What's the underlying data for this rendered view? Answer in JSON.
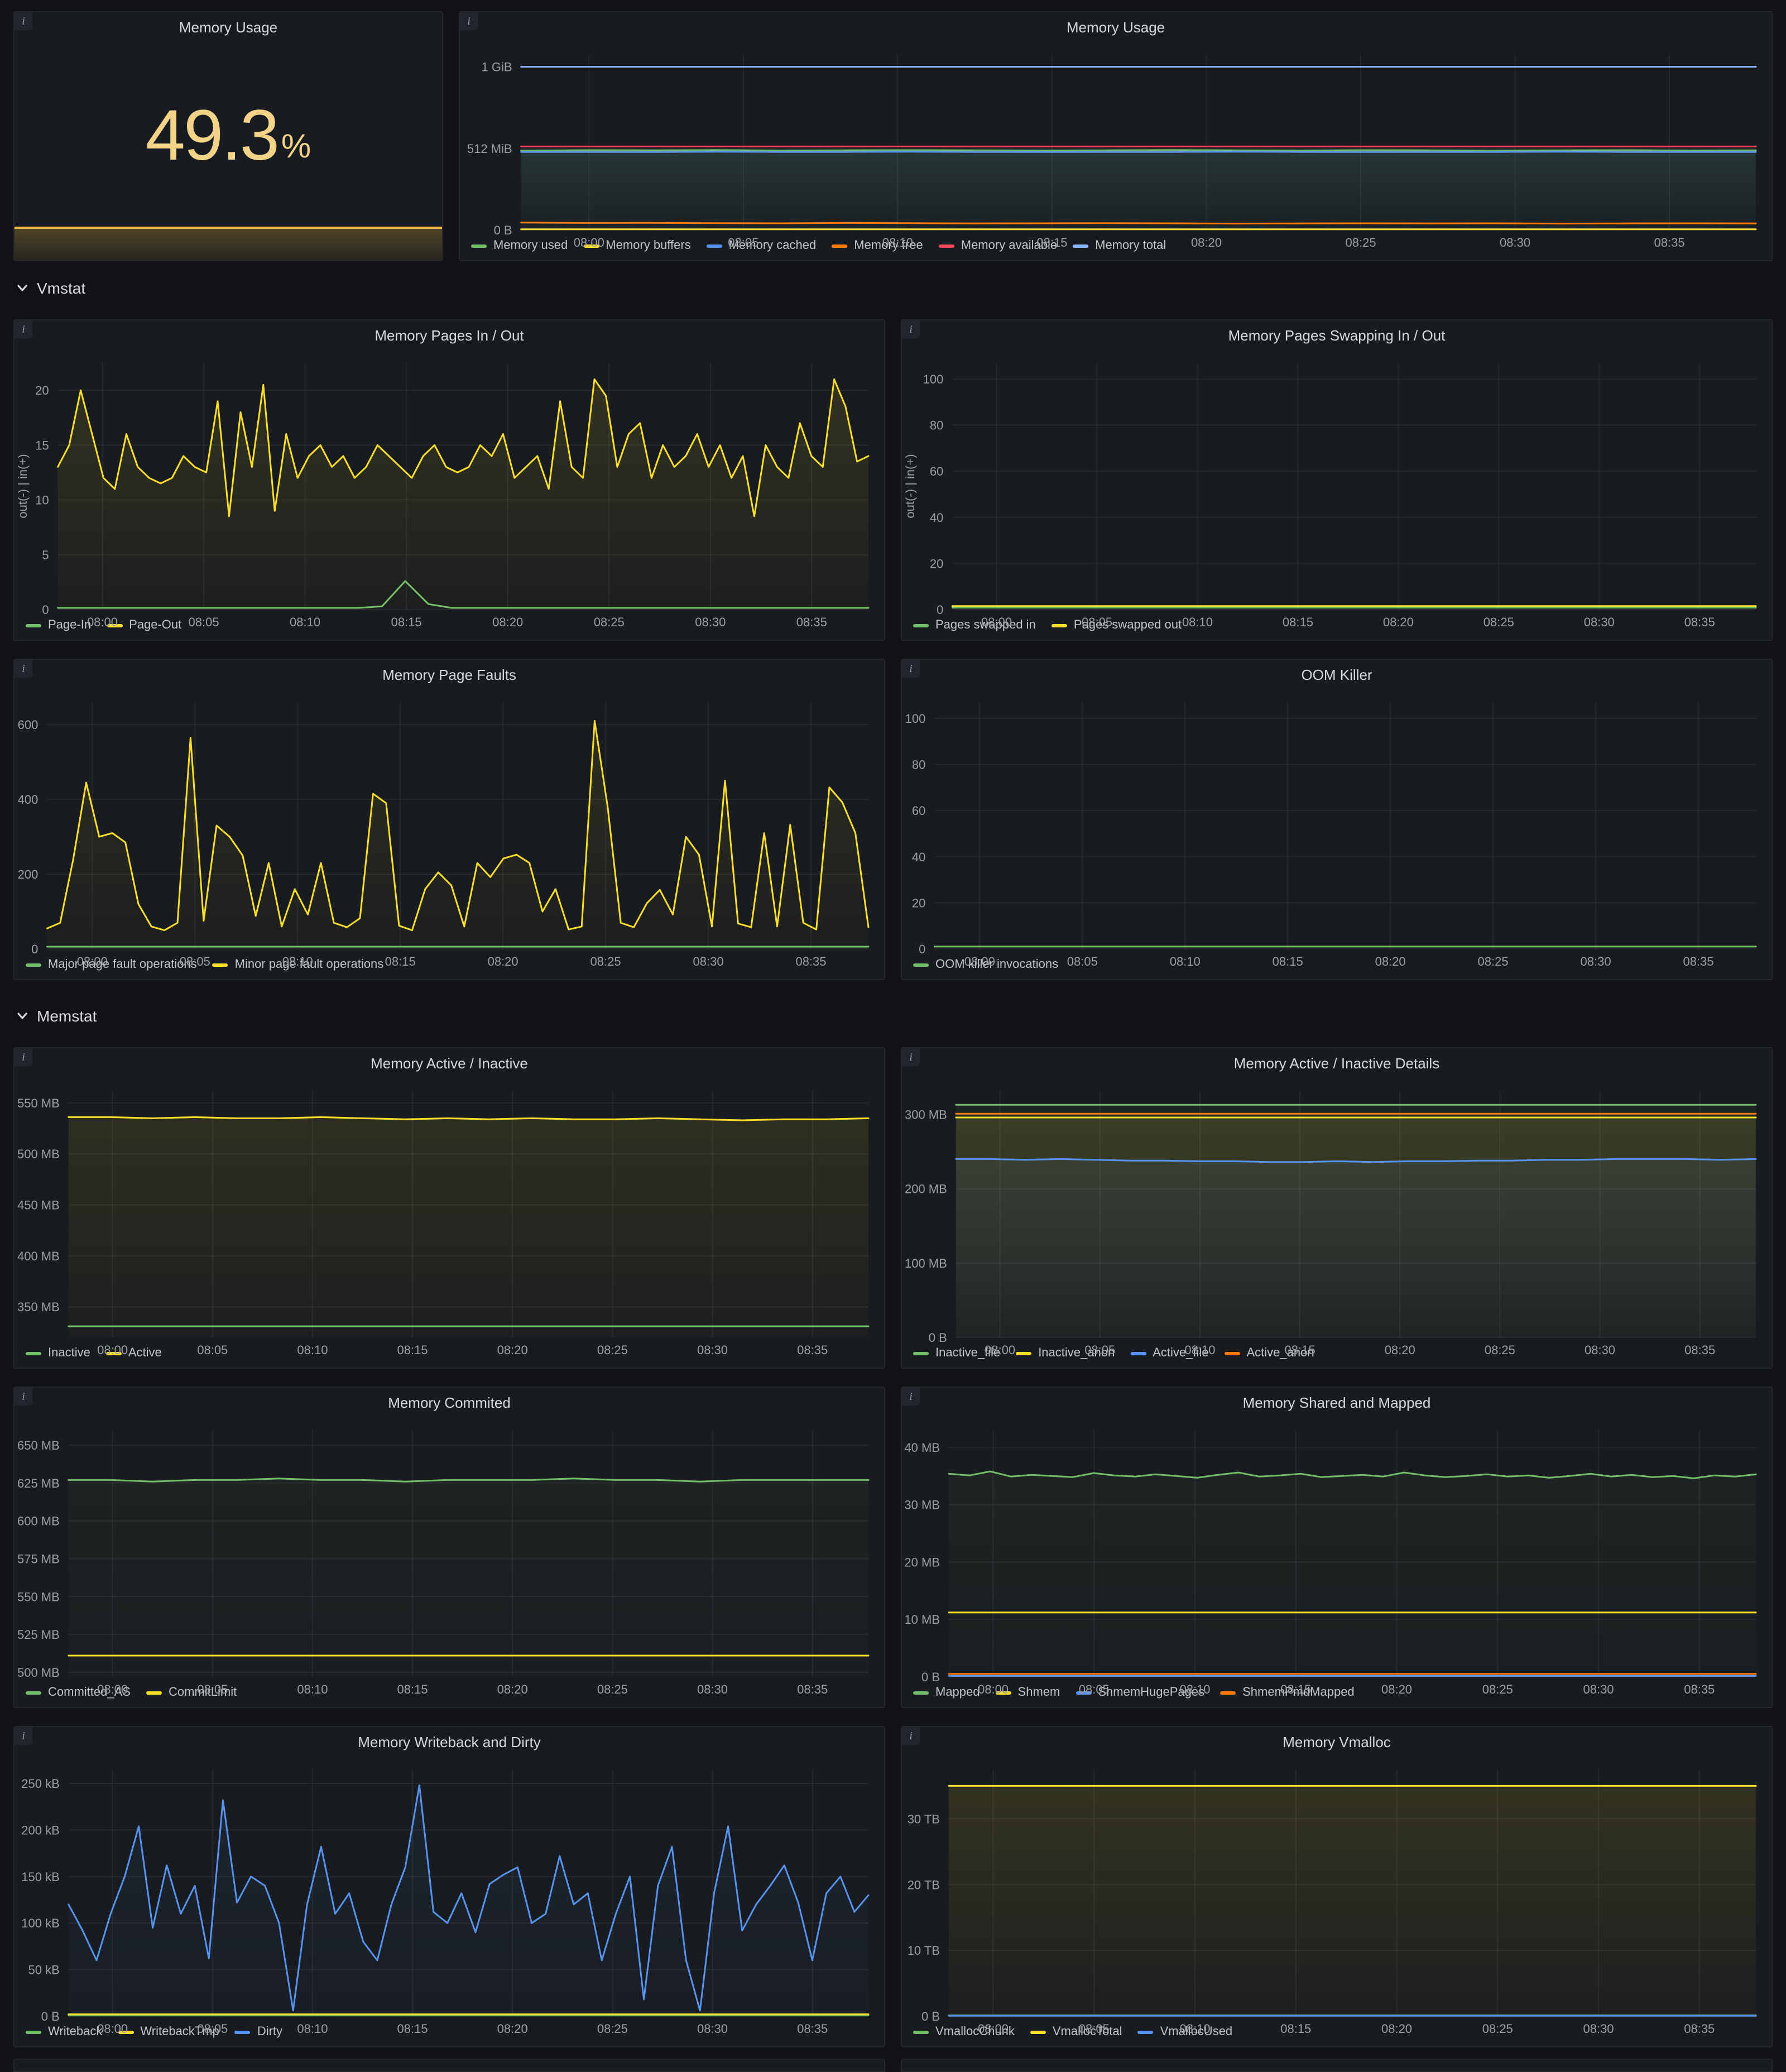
{
  "icons": {
    "info": "i",
    "chevron": "chevron-down"
  },
  "sections": {
    "vmstat": "Vmstat",
    "memstat": "Memstat"
  },
  "colors": {
    "green": "#73BF69",
    "yellow": "#FADE2A",
    "blue": "#5794F2",
    "orange": "#FF780A",
    "red": "#F2495C",
    "lightblue": "#8AB8FF",
    "panel_bg": "#181b1f",
    "page_bg": "#111217"
  },
  "gauge": {
    "title": "Memory Usage",
    "value": "49.3",
    "unit": "%",
    "color": "#F2D388",
    "bar_color": "#EAB839"
  },
  "time_ticks": [
    "08:00",
    "08:05",
    "08:10",
    "08:15",
    "08:20",
    "08:25",
    "08:30",
    "08:35"
  ],
  "chart_data": [
    {
      "type": "line",
      "title": "Memory Usage",
      "y_min": 0,
      "y_max": 1100,
      "y_ticks": [
        {
          "v": 0,
          "l": "0 B"
        },
        {
          "v": 512,
          "l": "512 MiB"
        },
        {
          "v": 1024,
          "l": "1 GiB"
        }
      ],
      "series": [
        {
          "name": "Memory used",
          "color": "#73BF69",
          "fill": 0.12,
          "points": [
            498,
            501,
            500,
            502,
            499,
            500,
            501,
            500,
            499,
            500,
            502,
            500,
            499,
            501,
            500,
            498,
            500,
            501,
            499,
            500
          ]
        },
        {
          "name": "Memory buffers",
          "color": "#FADE2A",
          "points": [
            4,
            4
          ]
        },
        {
          "name": "Memory cached",
          "color": "#5794F2",
          "fill": 0.06,
          "points": [
            490,
            490,
            489,
            491,
            490,
            490,
            491,
            490,
            489,
            490,
            490,
            491,
            490,
            489,
            490,
            490,
            491,
            490,
            490,
            490
          ]
        },
        {
          "name": "Memory free",
          "color": "#FF780A",
          "points": [
            46,
            44,
            45,
            43,
            42,
            44,
            43,
            41,
            42,
            43,
            42,
            40,
            41,
            42,
            41,
            42,
            40,
            41,
            42,
            41
          ]
        },
        {
          "name": "Memory available",
          "color": "#F2495C",
          "points": [
            524,
            524
          ]
        },
        {
          "name": "Memory total",
          "color": "#8AB8FF",
          "points": [
            1024,
            1024
          ]
        }
      ]
    },
    {
      "type": "line",
      "title": "Memory Pages In / Out",
      "y_label": "out(-) | in(+)",
      "y_min": 0,
      "y_max": 22.5,
      "y_ticks": [
        {
          "v": 0,
          "l": "0"
        },
        {
          "v": 5,
          "l": "5"
        },
        {
          "v": 10,
          "l": "10"
        },
        {
          "v": 15,
          "l": "15"
        },
        {
          "v": 20,
          "l": "20"
        }
      ],
      "series": [
        {
          "name": "Page-In",
          "color": "#73BF69",
          "points": [
            0.15,
            0.15,
            0.15,
            0.15,
            0.15,
            0.15,
            0.15,
            0.15,
            0.15,
            0.15,
            0.15,
            0.15,
            0.15,
            0.15,
            0.3,
            2.6,
            0.5,
            0.15,
            0.15,
            0.15,
            0.15,
            0.15,
            0.15,
            0.15,
            0.15,
            0.15,
            0.15,
            0.15,
            0.15,
            0.15,
            0.15,
            0.15,
            0.15,
            0.15,
            0.15,
            0.15
          ]
        },
        {
          "name": "Page-Out",
          "color": "#FADE2A",
          "fill": 0.12,
          "points": [
            13,
            15,
            20,
            16,
            12,
            11,
            16,
            13,
            12,
            11.5,
            12,
            14,
            13,
            12.5,
            19,
            8.5,
            18,
            13,
            20.5,
            9,
            16,
            12,
            14,
            15,
            13,
            14,
            12,
            13,
            15,
            14,
            13,
            12,
            14,
            15,
            13,
            12.5,
            13,
            15,
            14,
            16,
            12,
            13,
            14,
            11,
            19,
            13,
            12,
            21,
            19.5,
            13,
            16,
            17,
            12,
            15,
            13,
            14,
            16,
            13,
            15,
            12,
            14,
            8.5,
            15,
            13,
            12,
            17,
            14,
            13,
            21,
            18.5,
            13.5,
            14
          ]
        }
      ]
    },
    {
      "type": "line",
      "title": "Memory Pages Swapping In / Out",
      "y_label": "out(-) | in(+)",
      "y_min": 0,
      "y_max": 107,
      "y_ticks": [
        {
          "v": 0,
          "l": "0"
        },
        {
          "v": 20,
          "l": "20"
        },
        {
          "v": 40,
          "l": "40"
        },
        {
          "v": 60,
          "l": "60"
        },
        {
          "v": 80,
          "l": "80"
        },
        {
          "v": 100,
          "l": "100"
        }
      ],
      "series": [
        {
          "name": "Pages swapped in",
          "color": "#73BF69",
          "points": [
            0.8,
            0.8
          ]
        },
        {
          "name": "Pages swapped out",
          "color": "#FADE2A",
          "points": [
            1.5,
            1.5
          ]
        }
      ]
    },
    {
      "type": "line",
      "title": "Memory Page Faults",
      "y_min": 0,
      "y_max": 660,
      "y_ticks": [
        {
          "v": 0,
          "l": "0"
        },
        {
          "v": 200,
          "l": "200"
        },
        {
          "v": 400,
          "l": "400"
        },
        {
          "v": 600,
          "l": "600"
        }
      ],
      "series": [
        {
          "name": "Major page fault operations",
          "color": "#73BF69",
          "points": [
            6,
            6
          ]
        },
        {
          "name": "Minor page fault operations",
          "color": "#FADE2A",
          "fill": 0.1,
          "points": [
            55,
            70,
            240,
            445,
            300,
            310,
            285,
            120,
            60,
            50,
            70,
            565,
            75,
            330,
            300,
            250,
            88,
            230,
            60,
            160,
            92,
            230,
            70,
            58,
            82,
            415,
            390,
            62,
            50,
            160,
            205,
            170,
            60,
            230,
            192,
            242,
            252,
            230,
            100,
            160,
            52,
            60,
            610,
            380,
            70,
            58,
            122,
            158,
            92,
            300,
            252,
            60,
            450,
            68,
            58,
            310,
            60,
            332,
            70,
            52,
            432,
            392,
            310,
            58
          ]
        }
      ]
    },
    {
      "type": "line",
      "title": "OOM Killer",
      "y_min": 0,
      "y_max": 107,
      "y_ticks": [
        {
          "v": 0,
          "l": "0"
        },
        {
          "v": 20,
          "l": "20"
        },
        {
          "v": 40,
          "l": "40"
        },
        {
          "v": 60,
          "l": "60"
        },
        {
          "v": 80,
          "l": "80"
        },
        {
          "v": 100,
          "l": "100"
        }
      ],
      "series": [
        {
          "name": "OOM killer invocations",
          "color": "#73BF69",
          "points": [
            1,
            1
          ]
        }
      ]
    },
    {
      "type": "line",
      "title": "Memory Active / Inactive",
      "y_min": 320,
      "y_max": 562,
      "y_ticks": [
        {
          "v": 350,
          "l": "350 MB"
        },
        {
          "v": 400,
          "l": "400 MB"
        },
        {
          "v": 450,
          "l": "450 MB"
        },
        {
          "v": 500,
          "l": "500 MB"
        },
        {
          "v": 550,
          "l": "550 MB"
        }
      ],
      "series": [
        {
          "name": "Inactive",
          "color": "#73BF69",
          "points": [
            331,
            331
          ]
        },
        {
          "name": "Active",
          "color": "#FADE2A",
          "fill": 0.1,
          "points": [
            536,
            536,
            535,
            536,
            535,
            535,
            536,
            535,
            534,
            535,
            534,
            535,
            534,
            534,
            535,
            534,
            533,
            534,
            534,
            535
          ]
        }
      ]
    },
    {
      "type": "line",
      "title": "Memory Active / Inactive Details",
      "y_min": 0,
      "y_max": 332,
      "y_ticks": [
        {
          "v": 0,
          "l": "0 B"
        },
        {
          "v": 100,
          "l": "100 MB"
        },
        {
          "v": 200,
          "l": "200 MB"
        },
        {
          "v": 300,
          "l": "300 MB"
        }
      ],
      "series": [
        {
          "name": "Inactive_file",
          "color": "#73BF69",
          "fill": 0.07,
          "points": [
            313,
            313
          ]
        },
        {
          "name": "Inactive_anon",
          "color": "#FADE2A",
          "fill": 0.13,
          "points": [
            296,
            296
          ]
        },
        {
          "name": "Active_file",
          "color": "#5794F2",
          "fill": 0.08,
          "points": [
            240,
            240,
            239,
            240,
            239,
            238,
            238,
            237,
            237,
            236,
            236,
            237,
            236,
            237,
            237,
            238,
            238,
            239,
            239,
            240,
            240,
            240,
            239,
            240
          ]
        },
        {
          "name": "Active_anon",
          "color": "#FF780A",
          "points": [
            301,
            301
          ]
        }
      ]
    },
    {
      "type": "line",
      "title": "Memory Commited",
      "y_min": 497,
      "y_max": 660,
      "y_ticks": [
        {
          "v": 500,
          "l": "500 MB"
        },
        {
          "v": 525,
          "l": "525 MB"
        },
        {
          "v": 550,
          "l": "550 MB"
        },
        {
          "v": 575,
          "l": "575 MB"
        },
        {
          "v": 600,
          "l": "600 MB"
        },
        {
          "v": 625,
          "l": "625 MB"
        },
        {
          "v": 650,
          "l": "650 MB"
        }
      ],
      "series": [
        {
          "name": "Committed_AS",
          "color": "#73BF69",
          "fill": 0.05,
          "points": [
            627,
            627,
            626,
            627,
            627,
            628,
            627,
            627,
            626,
            627,
            627,
            627,
            628,
            627,
            627,
            626,
            627,
            627,
            627,
            627
          ]
        },
        {
          "name": "CommitLimit",
          "color": "#FADE2A",
          "points": [
            511,
            511
          ]
        }
      ]
    },
    {
      "type": "line",
      "title": "Memory Shared and Mapped",
      "y_min": 0,
      "y_max": 43,
      "y_ticks": [
        {
          "v": 0,
          "l": "0 B"
        },
        {
          "v": 10,
          "l": "10 MB"
        },
        {
          "v": 20,
          "l": "20 MB"
        },
        {
          "v": 30,
          "l": "30 MB"
        },
        {
          "v": 40,
          "l": "40 MB"
        }
      ],
      "series": [
        {
          "name": "Mapped",
          "color": "#73BF69",
          "fill": 0.06,
          "points": [
            35.4,
            35.1,
            35.8,
            34.9,
            35.2,
            35,
            34.8,
            35.5,
            35.1,
            34.9,
            35.3,
            35,
            34.7,
            35.2,
            35.6,
            34.9,
            35.1,
            35.4,
            34.8,
            35,
            35.2,
            34.9,
            35.6,
            35.1,
            34.8,
            35,
            35.3,
            34.9,
            35.1,
            34.7,
            35,
            35.4,
            34.9,
            35.2,
            34.8,
            35,
            34.6,
            35.1,
            34.9,
            35.3
          ]
        },
        {
          "name": "Shmem",
          "color": "#FADE2A",
          "points": [
            11.2,
            11.2
          ]
        },
        {
          "name": "ShmemHugePages",
          "color": "#5794F2",
          "points": [
            0.15,
            0.15
          ]
        },
        {
          "name": "ShmemPmdMapped",
          "color": "#FF780A",
          "points": [
            0.5,
            0.5
          ]
        }
      ]
    },
    {
      "type": "line",
      "title": "Memory Writeback and Dirty",
      "y_min": 0,
      "y_max": 265,
      "y_ticks": [
        {
          "v": 0,
          "l": "0 B"
        },
        {
          "v": 50,
          "l": "50 kB"
        },
        {
          "v": 100,
          "l": "100 kB"
        },
        {
          "v": 150,
          "l": "150 kB"
        },
        {
          "v": 200,
          "l": "200 kB"
        },
        {
          "v": 250,
          "l": "250 kB"
        }
      ],
      "series": [
        {
          "name": "Writeback",
          "color": "#73BF69",
          "points": [
            0.8,
            0.8
          ]
        },
        {
          "name": "WritebackTmp",
          "color": "#FADE2A",
          "points": [
            2,
            2
          ]
        },
        {
          "name": "Dirty",
          "color": "#5794F2",
          "fill": 0.08,
          "points": [
            120,
            92,
            60,
            110,
            150,
            204,
            95,
            162,
            110,
            140,
            62,
            232,
            122,
            150,
            140,
            100,
            6,
            120,
            182,
            110,
            132,
            80,
            60,
            120,
            160,
            248,
            112,
            100,
            132,
            90,
            142,
            152,
            160,
            100,
            110,
            172,
            120,
            132,
            60,
            110,
            150,
            18,
            140,
            182,
            60,
            6,
            132,
            204,
            92,
            120,
            140,
            162,
            122,
            60,
            132,
            150,
            112,
            130
          ]
        }
      ]
    },
    {
      "type": "line",
      "title": "Memory Vmalloc",
      "y_min": 0,
      "y_max": 37.5,
      "y_ticks": [
        {
          "v": 0,
          "l": "0 B"
        },
        {
          "v": 10,
          "l": "10 TB"
        },
        {
          "v": 20,
          "l": "20 TB"
        },
        {
          "v": 30,
          "l": "30 TB"
        }
      ],
      "series": [
        {
          "name": "VmallocChunk",
          "color": "#73BF69",
          "points": [
            0.12,
            0.12
          ]
        },
        {
          "name": "VmallocTotal",
          "color": "#FADE2A",
          "fill": 0.12,
          "points": [
            35,
            35
          ]
        },
        {
          "name": "VmallocUsed",
          "color": "#5794F2",
          "points": [
            0.06,
            0.06
          ]
        }
      ]
    }
  ]
}
